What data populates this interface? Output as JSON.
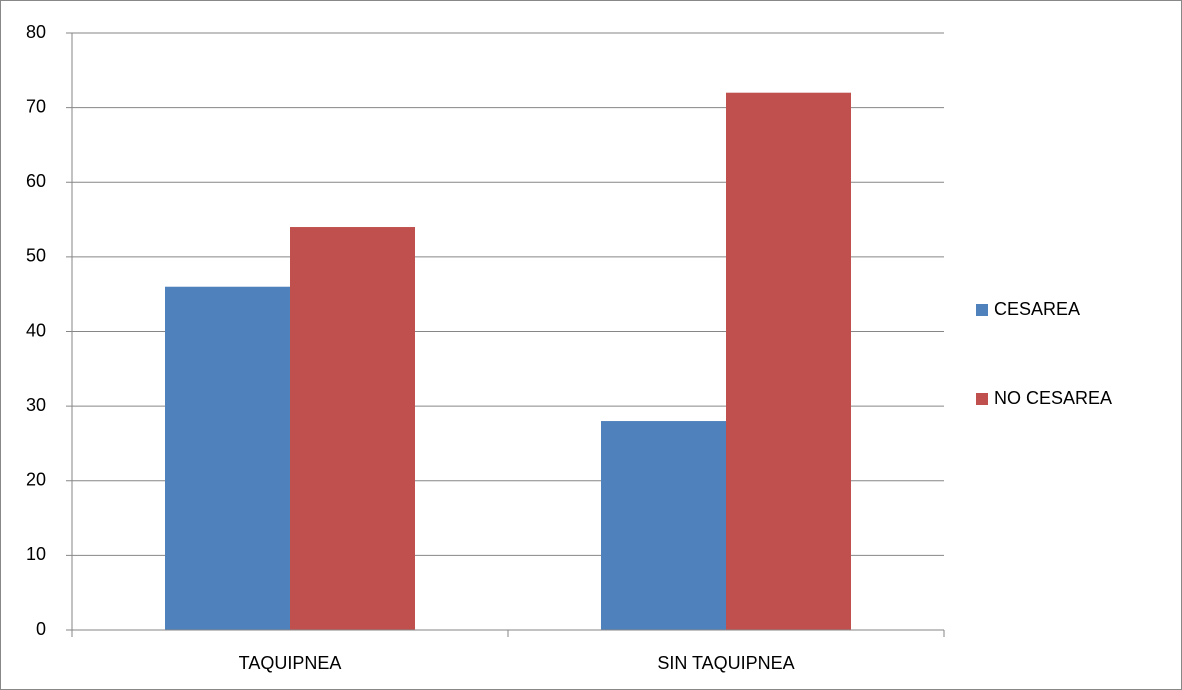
{
  "chart_data": {
    "type": "bar",
    "categories": [
      "TAQUIPNEA",
      "SIN TAQUIPNEA"
    ],
    "series": [
      {
        "name": "CESAREA",
        "color": "#4f81bd",
        "values": [
          46,
          28
        ]
      },
      {
        "name": "NO CESAREA",
        "color": "#c0504d",
        "values": [
          54,
          72
        ]
      }
    ],
    "ylim": [
      0,
      80
    ],
    "yticks": [
      0,
      10,
      20,
      30,
      40,
      50,
      60,
      70,
      80
    ],
    "grid": true,
    "legend": "right"
  }
}
